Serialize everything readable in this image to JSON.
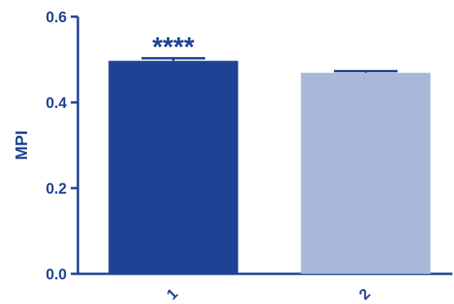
{
  "chart_data": {
    "type": "bar",
    "categories": [
      "1",
      "2"
    ],
    "values": [
      0.497,
      0.469
    ],
    "errors": [
      0.006,
      0.004
    ],
    "ylabel": "MPI",
    "xlabel": "",
    "ylim": [
      0,
      0.6
    ],
    "yticks": [
      "0.0",
      "0.2",
      "0.4",
      "0.6"
    ],
    "grid": false,
    "legend": "none",
    "annotations": [
      {
        "category": "1",
        "text": "****"
      }
    ],
    "colors": {
      "axis": "#1f4394",
      "bars": [
        "#1f4394",
        "#a9b8d8"
      ]
    }
  }
}
